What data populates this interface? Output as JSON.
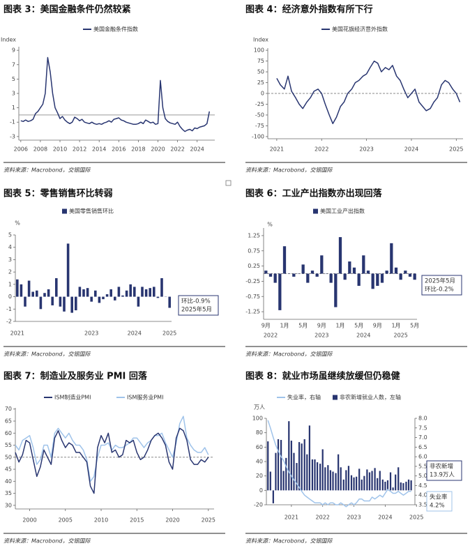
{
  "chart_data": [
    {
      "type": "line",
      "title": "图表 3：美国金融条件仍然较紧",
      "source": "资料来源：Macrobond，交银国际",
      "y_label": "Index",
      "x": [
        2006,
        2006.25,
        2006.5,
        2006.75,
        2007,
        2007.25,
        2007.5,
        2007.75,
        2008,
        2008.25,
        2008.5,
        2008.75,
        2009,
        2009.25,
        2009.5,
        2009.75,
        2010,
        2010.25,
        2010.5,
        2010.75,
        2011,
        2011.25,
        2011.5,
        2011.75,
        2012,
        2012.25,
        2012.5,
        2012.75,
        2013,
        2013.25,
        2013.5,
        2013.75,
        2014,
        2014.25,
        2014.5,
        2014.75,
        2015,
        2015.25,
        2015.5,
        2015.75,
        2016,
        2016.25,
        2016.5,
        2016.75,
        2017,
        2017.25,
        2017.5,
        2017.75,
        2018,
        2018.25,
        2018.5,
        2018.75,
        2019,
        2019.25,
        2019.5,
        2019.75,
        2020,
        2020.25,
        2020.5,
        2020.75,
        2021,
        2021.25,
        2021.5,
        2021.75,
        2022,
        2022.25,
        2022.5,
        2022.75,
        2023,
        2023.25,
        2023.5,
        2023.75,
        2024,
        2024.25,
        2024.5,
        2024.75,
        2025,
        2025.25
      ],
      "series": [
        {
          "name": "美国金融条件指数",
          "color": "#283570",
          "values": [
            -0.8,
            -0.9,
            -0.7,
            -0.9,
            -0.8,
            -0.6,
            0.2,
            0.5,
            1.0,
            1.5,
            3.0,
            8.0,
            6.0,
            3.0,
            1.0,
            0.3,
            -0.5,
            -0.2,
            -0.7,
            -1.0,
            -1.2,
            -1.0,
            -0.3,
            -0.5,
            -0.8,
            -0.6,
            -1.0,
            -1.1,
            -1.2,
            -1.0,
            -1.2,
            -1.3,
            -1.2,
            -1.3,
            -1.1,
            -1.0,
            -0.8,
            -1.0,
            -0.6,
            -0.5,
            -0.4,
            -0.7,
            -0.8,
            -1.0,
            -1.1,
            -1.2,
            -1.3,
            -1.3,
            -1.2,
            -1.0,
            -1.2,
            -0.7,
            -0.9,
            -1.1,
            -1.0,
            -1.3,
            -1.2,
            4.8,
            1.0,
            -0.5,
            -0.9,
            -1.1,
            -1.2,
            -1.3,
            -1.0,
            -1.6,
            -2.0,
            -2.3,
            -2.1,
            -2.0,
            -2.2,
            -1.8,
            -1.9,
            -1.7,
            -1.6,
            -1.5,
            -1.2,
            0.5
          ]
        }
      ],
      "xlim": [
        2005.8,
        2025.8
      ],
      "xticks": [
        2006,
        2008,
        2010,
        2012,
        2014,
        2016,
        2018,
        2020,
        2022,
        2024
      ],
      "ylim": [
        -3.5,
        9.5
      ],
      "yticks": [
        -3,
        -1,
        1,
        3,
        5,
        7,
        9
      ],
      "reference_line": 0,
      "reference_style": "solid"
    },
    {
      "type": "line",
      "title": "图表 4：经济意外指数有所下行",
      "source": "资料来源：Macrobond，交银国际",
      "y_label": "Index",
      "x": [
        2021,
        2021.08,
        2021.17,
        2021.25,
        2021.33,
        2021.42,
        2021.5,
        2021.58,
        2021.67,
        2021.75,
        2021.83,
        2021.92,
        2022,
        2022.08,
        2022.17,
        2022.25,
        2022.33,
        2022.42,
        2022.5,
        2022.58,
        2022.67,
        2022.75,
        2022.83,
        2022.92,
        2023,
        2023.08,
        2023.17,
        2023.25,
        2023.33,
        2023.42,
        2023.5,
        2023.58,
        2023.67,
        2023.75,
        2023.83,
        2023.92,
        2024,
        2024.08,
        2024.17,
        2024.25,
        2024.33,
        2024.42,
        2024.5,
        2024.58,
        2024.67,
        2024.75,
        2024.83,
        2024.92,
        2025,
        2025.08
      ],
      "series": [
        {
          "name": "美国花旗经济意外指数",
          "color": "#283570",
          "values": [
            35,
            20,
            10,
            40,
            5,
            -10,
            -25,
            -35,
            -20,
            -10,
            5,
            10,
            0,
            -25,
            -50,
            -70,
            -55,
            -30,
            -20,
            0,
            10,
            25,
            30,
            40,
            45,
            60,
            75,
            70,
            50,
            60,
            55,
            65,
            40,
            30,
            10,
            -10,
            0,
            10,
            -20,
            -30,
            -40,
            -35,
            -20,
            -10,
            20,
            30,
            25,
            10,
            0,
            -20
          ]
        }
      ],
      "xlim": [
        2020.8,
        2025.15
      ],
      "xticks": [
        2021,
        2022,
        2023,
        2024,
        2025
      ],
      "ylim": [
        -105,
        105
      ],
      "yticks": [
        -100,
        -75,
        -50,
        -25,
        0,
        25,
        50,
        75,
        100
      ],
      "reference_line": 0,
      "reference_style": "dashed"
    },
    {
      "type": "bar",
      "title": "图表 5：零售销售环比转弱",
      "source": "资料来源：Macrobond，交银国际",
      "y_label": "%",
      "categories": [
        "2021",
        null,
        null,
        null,
        null,
        null,
        null,
        null,
        null,
        null,
        null,
        null,
        null,
        null,
        null,
        null,
        null,
        null,
        null,
        "2023",
        null,
        null,
        null,
        null,
        null,
        null,
        null,
        null,
        null,
        null,
        "2024",
        null,
        null,
        null,
        null,
        null,
        null,
        null,
        null,
        "2025"
      ],
      "series": [
        {
          "name": "美国零售销售环比",
          "color": "#283570",
          "values": [
            1.4,
            1.0,
            -0.8,
            1.3,
            0.4,
            0.5,
            -1.0,
            0.3,
            0.6,
            -0.7,
            1.5,
            -0.8,
            -1.2,
            4.3,
            -1.3,
            -1.1,
            0.8,
            0.6,
            0.7,
            -0.4,
            0.5,
            -0.5,
            -0.2,
            0.2,
            0.6,
            -0.3,
            0.8,
            0.1,
            0.5,
            1.0,
            0.8,
            -0.8,
            0.8,
            0.6,
            0.7,
            0.8,
            -0.1,
            1.5,
            0.0,
            -0.9
          ]
        }
      ],
      "ylim": [
        -2,
        5
      ],
      "yticks": [
        -2,
        -1,
        0,
        1,
        2,
        3,
        4,
        5
      ],
      "annotations": [
        [
          "环比-0.9%",
          "2025年5月"
        ]
      ]
    },
    {
      "type": "bar",
      "title": "图表 6：工业产出指数亦出现回落",
      "source": "资料来源：Macrobond，交银国际",
      "y_label": "%",
      "categories": [
        "9月",
        null,
        null,
        null,
        "1月",
        null,
        null,
        null,
        "5月",
        null,
        null,
        null,
        "9月",
        null,
        null,
        null,
        "1月",
        null,
        null,
        null,
        "5月",
        null,
        null,
        null,
        "9月",
        null,
        null,
        null,
        "1月",
        null,
        null,
        null,
        "5月"
      ],
      "years": [
        "2022",
        "2023",
        "2024",
        "2025"
      ],
      "series": [
        {
          "name": "美国工业产出指数",
          "color": "#283570",
          "values": [
            0.1,
            -0.1,
            -0.3,
            -1.2,
            0.9,
            0.0,
            -0.1,
            0.0,
            0.3,
            -0.3,
            0.1,
            -0.1,
            0.6,
            0.0,
            -0.3,
            -1.1,
            1.2,
            -0.2,
            0.4,
            0.2,
            -0.4,
            0.6,
            0.1,
            -0.5,
            -0.4,
            -0.3,
            0.1,
            1.0,
            0.2,
            -0.2,
            0.1,
            -0.1,
            -0.2
          ]
        }
      ],
      "ylim": [
        -1.5,
        1.5
      ],
      "yticks": [
        -1.25,
        -0.75,
        -0.25,
        0.25,
        0.75,
        1.25
      ],
      "reference_line": 0,
      "reference_style": "dashed",
      "annotations": [
        [
          "2025年5月",
          "环比-0.2%"
        ]
      ]
    },
    {
      "type": "line",
      "title": "图表 7：制造业及服务业 PMI 回落",
      "source": "资料来源：Macrobond，交银国际",
      "x": [
        1998,
        1998.5,
        1999,
        1999.5,
        2000,
        2000.5,
        2001,
        2001.5,
        2002,
        2002.5,
        2003,
        2003.5,
        2004,
        2004.5,
        2005,
        2005.5,
        2006,
        2006.5,
        2007,
        2007.5,
        2008,
        2008.5,
        2009,
        2009.5,
        2010,
        2010.5,
        2011,
        2011.5,
        2012,
        2012.5,
        2013,
        2013.5,
        2014,
        2014.5,
        2015,
        2015.5,
        2016,
        2016.5,
        2017,
        2017.5,
        2018,
        2018.5,
        2019,
        2019.5,
        2020,
        2020.5,
        2021,
        2021.5,
        2022,
        2022.5,
        2023,
        2023.5,
        2024,
        2024.5,
        2025
      ],
      "series": [
        {
          "name": "ISM制造业PMI",
          "color": "#283570",
          "values": [
            52,
            48,
            51,
            57,
            56,
            49,
            42,
            46,
            53,
            50,
            47,
            58,
            61,
            57,
            54,
            56,
            55,
            52,
            52,
            50,
            48,
            38,
            35,
            54,
            59,
            56,
            60,
            52,
            53,
            50,
            51,
            57,
            56,
            57,
            52,
            49,
            50,
            53,
            57,
            59,
            60,
            58,
            55,
            48,
            45,
            58,
            62,
            61,
            57,
            49,
            47,
            47,
            49,
            48,
            50
          ]
        },
        {
          "name": "ISM服务业PMI",
          "color": "#9fc3ea",
          "values": [
            55,
            53,
            57,
            58,
            59,
            54,
            47,
            49,
            55,
            55,
            50,
            60,
            62,
            60,
            58,
            60,
            57,
            55,
            55,
            53,
            49,
            40,
            42,
            50,
            55,
            55,
            56,
            53,
            55,
            54,
            54,
            55,
            56,
            58,
            58,
            56,
            54,
            56,
            57,
            59,
            59,
            60,
            56,
            53,
            50,
            56,
            64,
            67,
            58,
            55,
            53,
            52,
            52,
            54,
            51
          ]
        }
      ],
      "xlim": [
        1998,
        2025.8
      ],
      "xticks": [
        2000,
        2005,
        2010,
        2015,
        2020,
        2025
      ],
      "ylim": [
        28.5,
        70.5
      ],
      "yticks": [
        30,
        35,
        40,
        45,
        50,
        55,
        60,
        65,
        70
      ],
      "reference_line": 50,
      "reference_style": "dashed"
    },
    {
      "type": "combo",
      "title": "图表 8：就业市场虽继续放缓但仍稳健",
      "source": "资料来源：Macrobond，交银国际",
      "y_label": "万人",
      "x": [
        2020.75,
        2020.83,
        2020.92,
        2021,
        2021.08,
        2021.17,
        2021.25,
        2021.33,
        2021.42,
        2021.5,
        2021.58,
        2021.67,
        2021.75,
        2021.83,
        2021.92,
        2022,
        2022.08,
        2022.17,
        2022.25,
        2022.33,
        2022.42,
        2022.5,
        2022.58,
        2022.67,
        2022.75,
        2022.83,
        2022.92,
        2023,
        2023.08,
        2023.17,
        2023.25,
        2023.33,
        2023.42,
        2023.5,
        2023.58,
        2023.67,
        2023.75,
        2023.83,
        2023.92,
        2024,
        2024.08,
        2024.17,
        2024.25,
        2024.33,
        2024.42,
        2024.5,
        2024.58,
        2024.67,
        2024.75,
        2024.83,
        2024.92,
        2025,
        2025.08,
        2025.17,
        2025.25,
        2025.33
      ],
      "series": [
        {
          "name": "失业率，右轴",
          "color": "#9fc3ea",
          "type": "line",
          "axis": "y2",
          "values": [
            7.9,
            7.5,
            7.0,
            6.6,
            6.3,
            6.0,
            5.8,
            5.5,
            5.2,
            5.0,
            4.8,
            4.6,
            4.4,
            4.2,
            4.0,
            3.9,
            3.8,
            3.7,
            3.6,
            3.6,
            3.6,
            3.5,
            3.6,
            3.5,
            3.6,
            3.6,
            3.5,
            3.5,
            3.6,
            3.5,
            3.4,
            3.5,
            3.6,
            3.5,
            3.6,
            3.8,
            3.8,
            3.7,
            3.7,
            3.7,
            3.9,
            3.8,
            3.9,
            4.0,
            3.9,
            4.1,
            4.3,
            4.2,
            4.1,
            4.1,
            4.2,
            4.1,
            4.0,
            4.1,
            4.2,
            4.2
          ]
        },
        {
          "name": "非农新增就业人数，左轴",
          "color": "#283570",
          "type": "bar",
          "values": [
            68,
            26,
            -18,
            52,
            71,
            70,
            27,
            45,
            96,
            69,
            52,
            38,
            67,
            65,
            71,
            50,
            90,
            43,
            43,
            39,
            37,
            57,
            32,
            35,
            28,
            26,
            24,
            50,
            32,
            15,
            28,
            34,
            21,
            18,
            19,
            30,
            15,
            20,
            29,
            25,
            27,
            31,
            17,
            27,
            15,
            12,
            14,
            25,
            4,
            22,
            32,
            11,
            10,
            12,
            15,
            13.9
          ]
        }
      ],
      "xlim": [
        2020.7,
        2025.45
      ],
      "xticks": [
        {
          "value": 2021.5,
          "label": "2021"
        },
        {
          "value": 2022.5,
          "label": "2022"
        },
        {
          "value": 2023.5,
          "label": "2023"
        },
        {
          "value": 2024.5,
          "label": "2024"
        },
        {
          "value": 2025.5,
          "label": "2025"
        }
      ],
      "ylim": [
        -20,
        100
      ],
      "yticks": [
        -20,
        0,
        20,
        40,
        60,
        80,
        100
      ],
      "y2lim": [
        3.5,
        8.0
      ],
      "y2ticks": [
        3.5,
        {
          "value": 4,
          "label": "4.0"
        },
        4.5,
        {
          "value": 5,
          "label": "5.0"
        },
        5.5,
        {
          "value": 6,
          "label": "6.0"
        },
        6.5,
        {
          "value": 7,
          "label": "7.0"
        },
        7.5,
        {
          "value": 8,
          "label": "8.0"
        }
      ],
      "annotations": [
        [
          "非农新增",
          "13.9万人"
        ],
        [
          "失业率",
          "4.2%"
        ]
      ]
    }
  ]
}
